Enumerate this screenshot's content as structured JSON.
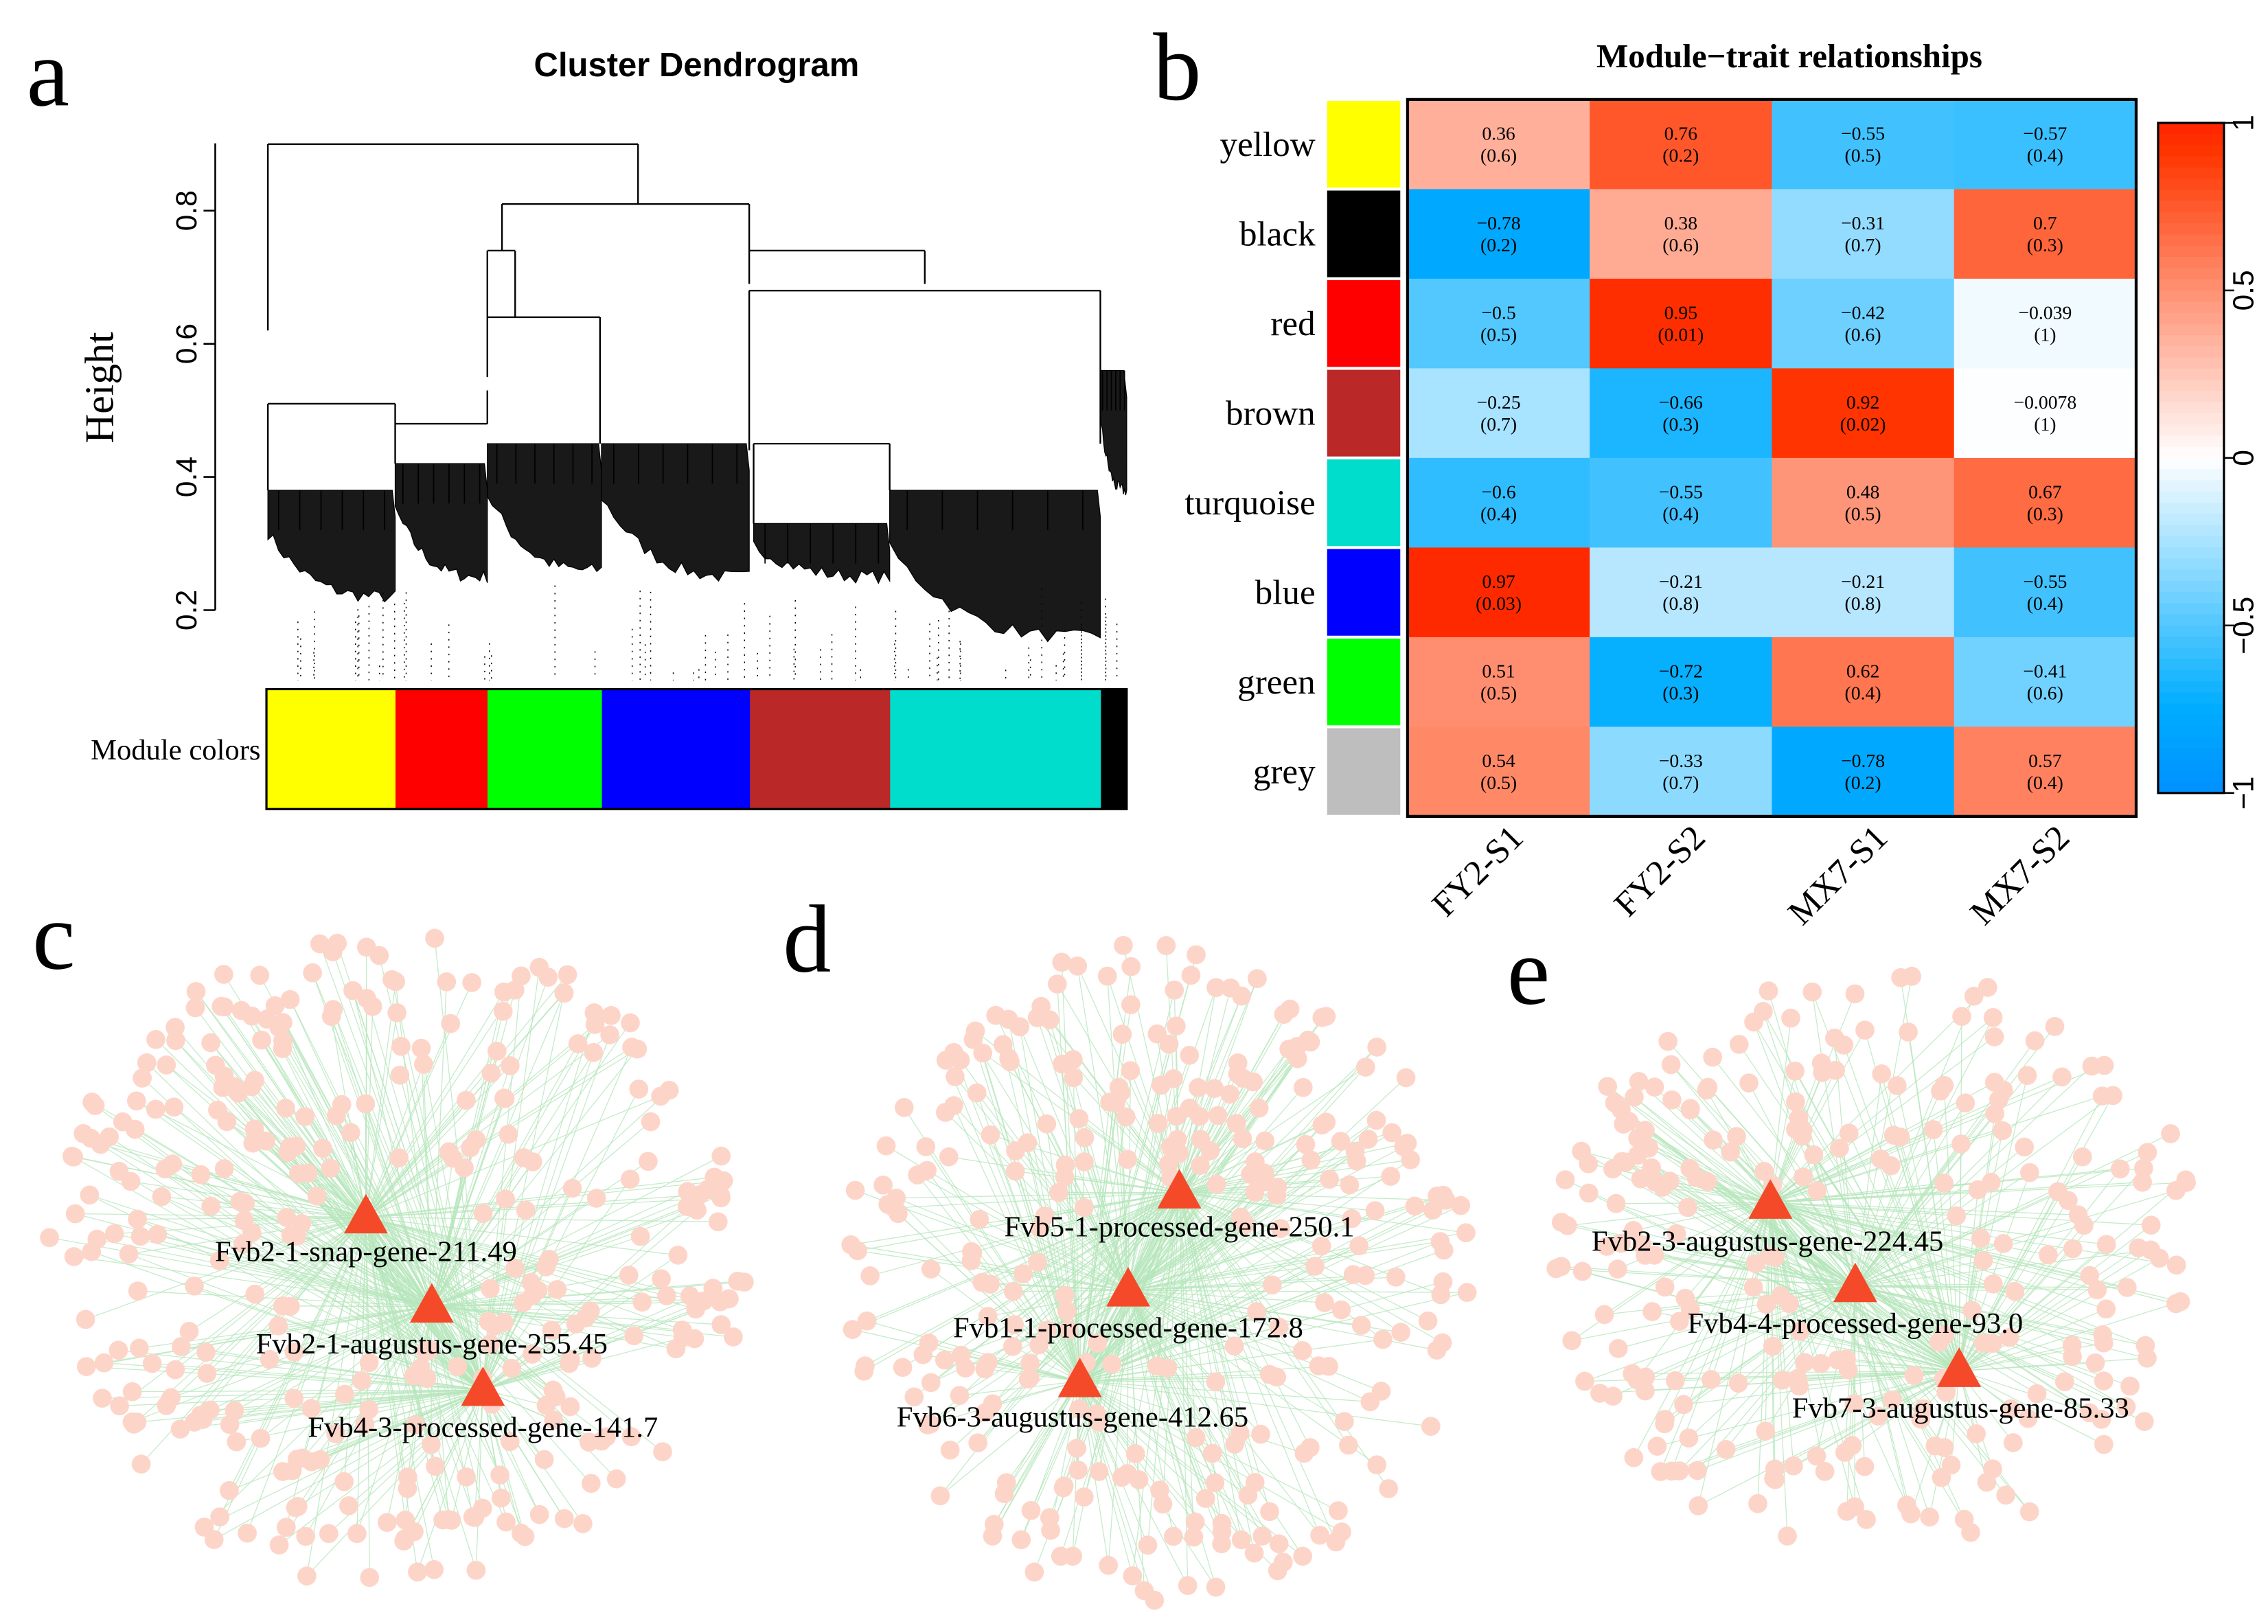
{
  "panels": {
    "a": "a",
    "b": "b",
    "c": "c",
    "d": "d",
    "e": "e"
  },
  "chart_data": [
    {
      "type": "dendrogram",
      "title": "Cluster Dendrogram",
      "ylabel": "Height",
      "yticks": [
        "0.2",
        "0.4",
        "0.6",
        "0.8"
      ],
      "ylim": [
        0.2,
        0.9
      ],
      "color_bar_label": "Module colors",
      "module_colors": [
        {
          "name": "yellow",
          "color": "#FFFF00",
          "fraction": 0.15
        },
        {
          "name": "red",
          "color": "#FF0000",
          "fraction": 0.107
        },
        {
          "name": "green",
          "color": "#00FF00",
          "fraction": 0.133
        },
        {
          "name": "blue",
          "color": "#0000FF",
          "fraction": 0.172
        },
        {
          "name": "brown",
          "color": "#BB2828",
          "fraction": 0.163
        },
        {
          "name": "turquoise",
          "color": "#00DDCC",
          "fraction": 0.245
        },
        {
          "name": "black",
          "color": "#000000",
          "fraction": 0.03
        }
      ]
    },
    {
      "type": "heatmap",
      "title": "Module−trait relationships",
      "columns": [
        "FY2-S1",
        "FY2-S2",
        "MX7-S1",
        "MX7-S2"
      ],
      "rows": [
        {
          "module": "yellow",
          "color": "#FFFF00",
          "r": [
            "0.36",
            "0.76",
            "−0.55",
            "−0.57"
          ],
          "p": [
            "(0.6)",
            "(0.2)",
            "(0.5)",
            "(0.4)"
          ],
          "v": [
            0.36,
            0.76,
            -0.55,
            -0.57
          ]
        },
        {
          "module": "black",
          "color": "#000000",
          "r": [
            "−0.78",
            "0.38",
            "−0.31",
            "0.7"
          ],
          "p": [
            "(0.2)",
            "(0.6)",
            "(0.7)",
            "(0.3)"
          ],
          "v": [
            -0.78,
            0.38,
            -0.31,
            0.7
          ]
        },
        {
          "module": "red",
          "color": "#FF0000",
          "r": [
            "−0.5",
            "0.95",
            "−0.42",
            "−0.039"
          ],
          "p": [
            "(0.5)",
            "(0.01)",
            "(0.6)",
            "(1)"
          ],
          "v": [
            -0.5,
            0.95,
            -0.42,
            -0.039
          ]
        },
        {
          "module": "brown",
          "color": "#BB2828",
          "r": [
            "−0.25",
            "−0.66",
            "0.92",
            "−0.0078"
          ],
          "p": [
            "(0.7)",
            "(0.3)",
            "(0.02)",
            "(1)"
          ],
          "v": [
            -0.25,
            -0.66,
            0.92,
            -0.0078
          ]
        },
        {
          "module": "turquoise",
          "color": "#00DDCC",
          "r": [
            "−0.6",
            "−0.55",
            "0.48",
            "0.67"
          ],
          "p": [
            "(0.4)",
            "(0.4)",
            "(0.5)",
            "(0.3)"
          ],
          "v": [
            -0.6,
            -0.55,
            0.48,
            0.67
          ]
        },
        {
          "module": "blue",
          "color": "#0000FF",
          "r": [
            "0.97",
            "−0.21",
            "−0.21",
            "−0.55"
          ],
          "p": [
            "(0.03)",
            "(0.8)",
            "(0.8)",
            "(0.4)"
          ],
          "v": [
            0.97,
            -0.21,
            -0.21,
            -0.55
          ]
        },
        {
          "module": "green",
          "color": "#00FF00",
          "r": [
            "0.51",
            "−0.72",
            "0.62",
            "−0.41"
          ],
          "p": [
            "(0.5)",
            "(0.3)",
            "(0.4)",
            "(0.6)"
          ],
          "v": [
            0.51,
            -0.72,
            0.62,
            -0.41
          ]
        },
        {
          "module": "grey",
          "color": "#BEBEBE",
          "r": [
            "0.54",
            "−0.33",
            "−0.78",
            "0.57"
          ],
          "p": [
            "(0.5)",
            "(0.7)",
            "(0.2)",
            "(0.4)"
          ],
          "v": [
            0.54,
            -0.33,
            -0.78,
            0.57
          ]
        }
      ],
      "colorbar_ticks": [
        "1",
        "0.5",
        "0",
        "−0.5",
        "−1"
      ],
      "colorbar_values": [
        1,
        0.5,
        0,
        -0.5,
        -1
      ],
      "low_color": "#0080FF",
      "high_color": "#FF2000"
    },
    {
      "type": "network",
      "panel": "c",
      "hubs": [
        "Fvb2-1-snap-gene-211.49",
        "Fvb2-1-augustus-gene-255.45",
        "Fvb4-3-processed-gene-141.7"
      ]
    },
    {
      "type": "network",
      "panel": "d",
      "hubs": [
        "Fvb5-1-processed-gene-250.1",
        "Fvb1-1-processed-gene-172.8",
        "Fvb6-3-augustus-gene-412.65"
      ]
    },
    {
      "type": "network",
      "panel": "e",
      "hubs": [
        "Fvb2-3-augustus-gene-224.45",
        "Fvb4-4-processed-gene-93.0",
        "Fvb7-3-augustus-gene-85.33"
      ]
    }
  ],
  "colors": {
    "node": "#FDD5C8",
    "edge": "#B6E6BC",
    "hub": "#F44A2A"
  }
}
